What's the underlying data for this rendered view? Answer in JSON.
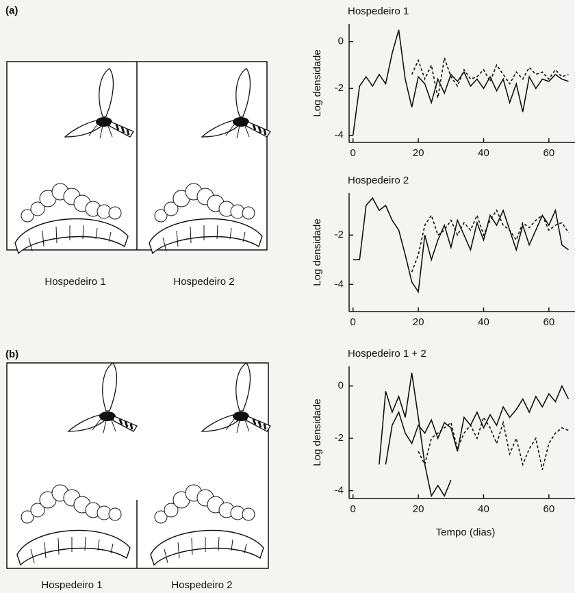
{
  "panel_labels": [
    "(a)",
    "(b)"
  ],
  "captions_a": [
    "Hospedeiro 1",
    "Hospedeiro 2"
  ],
  "captions_b": [
    "Hospedeiro 1",
    "Hospedeiro 2"
  ],
  "chart_data": [
    {
      "type": "line",
      "title": "Hospedeiro 1",
      "y_label": "Log densidade",
      "x": [
        0,
        2,
        4,
        6,
        8,
        10,
        12,
        14,
        16,
        18,
        20,
        22,
        24,
        26,
        28,
        30,
        32,
        34,
        36,
        38,
        40,
        42,
        44,
        46,
        48,
        50,
        52,
        54,
        56,
        58,
        60,
        62,
        64,
        66
      ],
      "xlim": [
        -1.2,
        68
      ],
      "xticks": [
        0,
        20,
        40,
        60
      ],
      "ylim": [
        -4.3,
        0.75
      ],
      "yticks": [
        0,
        -2,
        -4
      ],
      "series": [
        {
          "color": "#111111",
          "dash": false,
          "values": [
            -4.0,
            -1.9,
            -1.5,
            -1.9,
            -1.4,
            -1.8,
            -0.5,
            0.5,
            -1.6,
            -2.8,
            -1.5,
            -1.8,
            -2.6,
            -1.6,
            -2.2,
            -1.4,
            -1.7,
            -1.3,
            -1.9,
            -1.6,
            -2.0,
            -1.5,
            -2.1,
            -1.6,
            -2.6,
            -1.8,
            -3.0,
            -1.5,
            -2.0,
            -1.6,
            -1.7,
            -1.4,
            -1.6,
            -1.7
          ]
        },
        {
          "color": "#111111",
          "dash": true,
          "values": [
            null,
            null,
            null,
            null,
            null,
            null,
            null,
            null,
            null,
            -1.4,
            -0.8,
            -1.6,
            -1.0,
            -2.4,
            -0.7,
            -1.5,
            -1.9,
            -1.2,
            -1.6,
            -1.5,
            -1.2,
            -1.7,
            -1.0,
            -1.4,
            -1.8,
            -1.3,
            -1.6,
            -1.1,
            -1.4,
            -1.3,
            -1.6,
            -1.2,
            -1.5,
            -1.4
          ]
        }
      ]
    },
    {
      "type": "line",
      "title": "Hospedeiro 2",
      "y_label": "Log densidade",
      "x": [
        0,
        2,
        4,
        6,
        8,
        10,
        12,
        14,
        16,
        18,
        20,
        22,
        24,
        26,
        28,
        30,
        32,
        34,
        36,
        38,
        40,
        42,
        44,
        46,
        48,
        50,
        52,
        54,
        56,
        58,
        60,
        62,
        64,
        66
      ],
      "xlim": [
        -1.2,
        68
      ],
      "xticks": [
        0,
        20,
        40,
        60
      ],
      "ylim": [
        -5.1,
        -0.3
      ],
      "yticks": [
        -2,
        -4
      ],
      "series": [
        {
          "color": "#111111",
          "dash": false,
          "values": [
            -3.0,
            -3.0,
            -0.8,
            -0.5,
            -1.0,
            -0.8,
            -1.4,
            -1.8,
            -2.8,
            -3.9,
            -4.3,
            -2.0,
            -3.0,
            -2.2,
            -1.6,
            -2.5,
            -1.4,
            -2.0,
            -2.6,
            -1.5,
            -2.2,
            -1.2,
            -1.6,
            -1.0,
            -1.8,
            -2.6,
            -1.6,
            -2.4,
            -1.8,
            -1.2,
            -1.6,
            -1.0,
            -2.4,
            -2.6
          ]
        },
        {
          "color": "#111111",
          "dash": true,
          "values": [
            null,
            null,
            null,
            null,
            null,
            null,
            null,
            null,
            null,
            -3.5,
            -2.8,
            -1.6,
            -1.2,
            -2.0,
            -1.8,
            -1.4,
            -2.0,
            -1.5,
            -1.8,
            -1.2,
            -2.0,
            -1.4,
            -1.0,
            -1.6,
            -1.8,
            -2.2,
            -1.5,
            -1.7,
            -1.4,
            -1.2,
            -1.8,
            -1.6,
            -1.5,
            -1.9
          ]
        }
      ]
    },
    {
      "type": "line",
      "title": "Hospedeiro 1 + 2",
      "y_label": "Log densidade",
      "x_label": "Tempo (dias)",
      "x": [
        0,
        2,
        4,
        6,
        8,
        10,
        12,
        14,
        16,
        18,
        20,
        22,
        24,
        26,
        28,
        30,
        32,
        34,
        36,
        38,
        40,
        42,
        44,
        46,
        48,
        50,
        52,
        54,
        56,
        58,
        60,
        62,
        64,
        66
      ],
      "xlim": [
        -1.2,
        68
      ],
      "xticks": [
        0,
        20,
        40,
        60
      ],
      "ylim": [
        -4.3,
        0.75
      ],
      "yticks": [
        0,
        -2,
        -4
      ],
      "series": [
        {
          "color": "#111111",
          "dash": false,
          "values": [
            null,
            null,
            null,
            null,
            -3.0,
            -0.2,
            -1.0,
            -0.4,
            -1.2,
            0.5,
            -1.2,
            -3.0,
            -4.2,
            -3.8,
            -4.2,
            -3.6,
            null,
            null,
            null,
            null,
            null,
            null,
            null,
            null,
            null,
            null,
            null,
            null,
            null,
            null,
            null,
            null,
            null,
            null
          ]
        },
        {
          "color": "#111111",
          "dash": false,
          "values": [
            null,
            null,
            null,
            null,
            null,
            -3.0,
            -1.5,
            -1.0,
            -1.8,
            -2.2,
            -1.5,
            -1.8,
            -1.3,
            -2.0,
            -1.4,
            -1.6,
            -2.5,
            -1.2,
            -1.5,
            -1.0,
            -1.6,
            -1.1,
            -1.5,
            -0.8,
            -1.2,
            -0.9,
            -0.5,
            -1.0,
            -0.4,
            -0.8,
            -0.3,
            -0.6,
            0.0,
            -0.5
          ]
        },
        {
          "color": "#111111",
          "dash": true,
          "values": [
            null,
            null,
            null,
            null,
            null,
            null,
            null,
            null,
            null,
            null,
            -2.5,
            -3.0,
            -2.0,
            -1.8,
            -1.6,
            -1.4,
            -2.4,
            -1.8,
            -1.5,
            -2.0,
            -1.2,
            -1.6,
            -2.2,
            -1.4,
            -2.6,
            -2.0,
            -3.0,
            -2.4,
            -2.0,
            -3.2,
            -2.2,
            -1.8,
            -1.6,
            -1.7
          ]
        }
      ]
    }
  ]
}
